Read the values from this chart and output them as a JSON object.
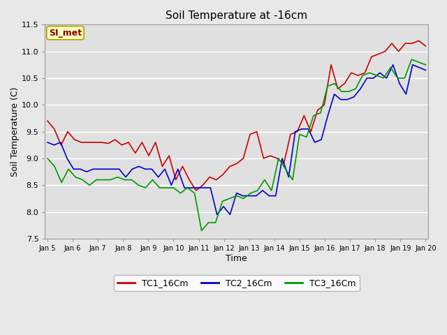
{
  "title": "Soil Temperature at -16cm",
  "xlabel": "Time",
  "ylabel": "Soil Temperature (C)",
  "ylim": [
    7.5,
    11.5
  ],
  "figure_bg": "#e8e8e8",
  "plot_bg_color": "#e0e0e0",
  "legend_bg": "#ffffff",
  "grid_color": "#ffffff",
  "annotation_text": "SI_met",
  "annotation_color": "#8b0000",
  "annotation_bg": "#ffffc0",
  "annotation_border": "#aaa000",
  "x_tick_labels": [
    "Jan 5",
    "Jan 6",
    "Jan 7",
    "Jan 8",
    "Jan 9",
    "Jan 10",
    "Jan 11",
    "Jan 12",
    "Jan 13",
    "Jan 14",
    "Jan 15",
    "Jan 16",
    "Jan 17",
    "Jan 18",
    "Jan 19",
    "Jan 20"
  ],
  "TC1_color": "#cc0000",
  "TC2_color": "#0000cc",
  "TC3_color": "#009900",
  "TC1_16Cm": [
    9.7,
    9.55,
    9.25,
    9.5,
    9.35,
    9.3,
    9.3,
    9.3,
    9.3,
    9.28,
    9.35,
    9.25,
    9.3,
    9.1,
    9.3,
    9.05,
    9.3,
    8.85,
    9.05,
    8.6,
    8.85,
    8.6,
    8.4,
    8.5,
    8.65,
    8.6,
    8.7,
    8.85,
    8.9,
    9.0,
    9.45,
    9.5,
    9.0,
    9.05,
    9.0,
    8.9,
    9.45,
    9.5,
    9.8,
    9.5,
    9.9,
    10.0,
    10.75,
    10.3,
    10.4,
    10.6,
    10.55,
    10.6,
    10.9,
    10.95,
    11.0,
    11.15,
    11.0,
    11.15,
    11.15,
    11.2,
    11.1
  ],
  "TC2_16Cm": [
    9.3,
    9.25,
    9.3,
    9.0,
    8.8,
    8.8,
    8.75,
    8.8,
    8.8,
    8.8,
    8.8,
    8.8,
    8.65,
    8.8,
    8.85,
    8.8,
    8.8,
    8.65,
    8.8,
    8.5,
    8.8,
    8.45,
    8.45,
    8.45,
    8.45,
    8.45,
    7.95,
    8.1,
    7.95,
    8.35,
    8.3,
    8.3,
    8.3,
    8.4,
    8.3,
    8.3,
    9.0,
    8.65,
    9.5,
    9.55,
    9.55,
    9.3,
    9.35,
    9.8,
    10.2,
    10.1,
    10.1,
    10.15,
    10.3,
    10.5,
    10.5,
    10.6,
    10.5,
    10.75,
    10.4,
    10.2,
    10.75,
    10.7,
    10.65
  ],
  "TC3_16Cm": [
    9.0,
    8.85,
    8.55,
    8.8,
    8.65,
    8.6,
    8.5,
    8.6,
    8.6,
    8.6,
    8.65,
    8.6,
    8.6,
    8.5,
    8.45,
    8.6,
    8.45,
    8.45,
    8.45,
    8.35,
    8.45,
    8.35,
    7.65,
    7.8,
    7.8,
    8.2,
    8.25,
    8.3,
    8.25,
    8.35,
    8.4,
    8.6,
    8.4,
    9.0,
    8.8,
    8.6,
    9.45,
    9.4,
    9.8,
    9.85,
    10.35,
    10.4,
    10.25,
    10.25,
    10.3,
    10.55,
    10.6,
    10.55,
    10.5,
    10.7,
    10.5,
    10.5,
    10.85,
    10.8,
    10.75
  ]
}
